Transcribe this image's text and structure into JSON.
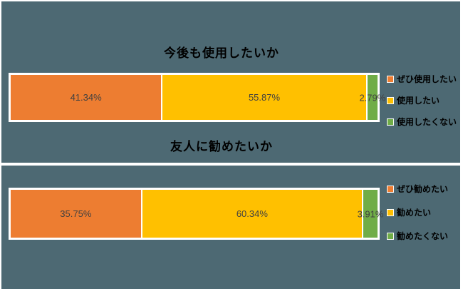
{
  "panel": {
    "background": "#4d6973",
    "border": "#ffffff"
  },
  "colors": {
    "orange": "#ed7d31",
    "gold": "#ffc000",
    "green": "#70ad47",
    "value_label": "#404040",
    "title_text": "#000000"
  },
  "chart_data": [
    {
      "type": "bar",
      "orientation": "horizontal_stacked",
      "title": "今後も使用したいか",
      "categories": [
        "今後も使用したいか"
      ],
      "series": [
        {
          "name": "ぜひ使用したい",
          "values": [
            41.34
          ],
          "data_label": "41.34%",
          "color": "#ed7d31"
        },
        {
          "name": "使用したい",
          "values": [
            55.87
          ],
          "data_label": "55.87%",
          "color": "#ffc000"
        },
        {
          "name": "使用したくない",
          "values": [
            2.79
          ],
          "data_label": "2.79%",
          "color": "#70ad47"
        }
      ],
      "xlim": [
        0,
        100
      ],
      "grid": false,
      "legend_position": "right"
    },
    {
      "type": "bar",
      "orientation": "horizontal_stacked",
      "title": "友人に勧めたいか",
      "categories": [
        "友人に勧めたいか"
      ],
      "series": [
        {
          "name": "ぜひ勧めたい",
          "values": [
            35.75
          ],
          "data_label": "35.75%",
          "color": "#ed7d31"
        },
        {
          "name": "勧めたい",
          "values": [
            60.34
          ],
          "data_label": "60.34%",
          "color": "#ffc000"
        },
        {
          "name": "勧めたくない",
          "values": [
            3.91
          ],
          "data_label": "3.91%",
          "color": "#70ad47"
        }
      ],
      "xlim": [
        0,
        100
      ],
      "grid": false,
      "legend_position": "right"
    }
  ]
}
